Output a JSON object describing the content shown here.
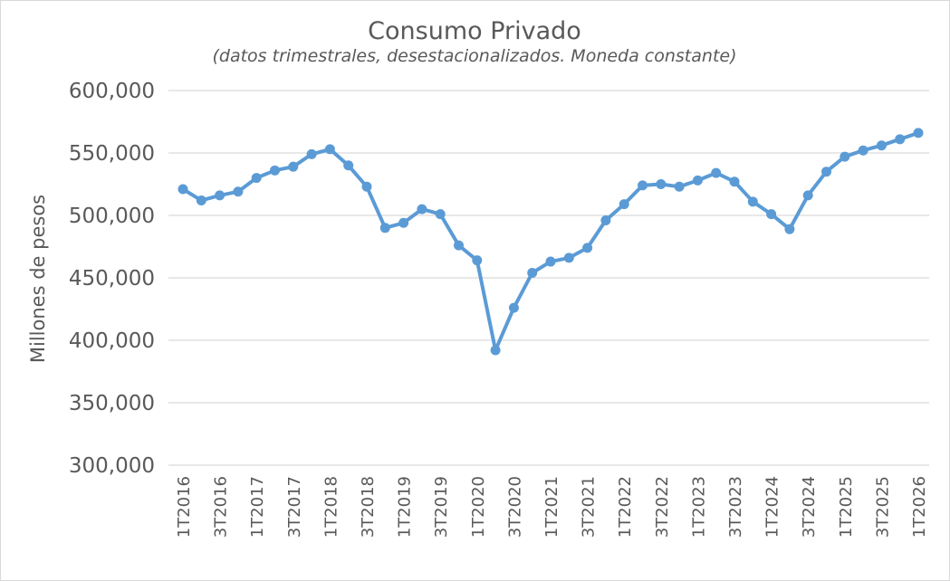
{
  "chart_data": {
    "type": "line",
    "title": "Consumo Privado",
    "subtitle": "(datos trimestrales, desestacionalizados. Moneda constante)",
    "xlabel": "",
    "ylabel": "Millones de pesos",
    "ylim": [
      300000,
      600000
    ],
    "yticks": [
      300000,
      350000,
      400000,
      450000,
      500000,
      550000,
      600000
    ],
    "ytick_labels": [
      "300,000",
      "350,000",
      "400,000",
      "450,000",
      "500,000",
      "550,000",
      "600,000"
    ],
    "grid": true,
    "legend": "none",
    "series_color": "#5b9bd5",
    "x": [
      "1T2016",
      "2T2016",
      "3T2016",
      "4T2016",
      "1T2017",
      "2T2017",
      "3T2017",
      "4T2017",
      "1T2018",
      "2T2018",
      "3T2018",
      "4T2018",
      "1T2019",
      "2T2019",
      "3T2019",
      "4T2019",
      "1T2020",
      "2T2020",
      "3T2020",
      "4T2020",
      "1T2021",
      "2T2021",
      "3T2021",
      "4T2021",
      "1T2022",
      "2T2022",
      "3T2022",
      "4T2022",
      "1T2023",
      "2T2023",
      "3T2023",
      "4T2023",
      "1T2024",
      "2T2024",
      "3T2024",
      "4T2024",
      "1T2025",
      "2T2025",
      "3T2025",
      "4T2025",
      "1T2026"
    ],
    "x_tick_labels": [
      "1T2016",
      "3T2016",
      "1T2017",
      "3T2017",
      "1T2018",
      "3T2018",
      "1T2019",
      "3T2019",
      "1T2020",
      "3T2020",
      "1T2021",
      "3T2021",
      "1T2022",
      "3T2022",
      "1T2023",
      "3T2023",
      "1T2024",
      "3T2024",
      "1T2025",
      "3T2025",
      "1T2026"
    ],
    "series": [
      {
        "values": [
          521000,
          512000,
          516000,
          519000,
          530000,
          536000,
          539000,
          549000,
          553000,
          540000,
          523000,
          490000,
          494000,
          505000,
          501000,
          476000,
          464000,
          392000,
          426000,
          454000,
          463000,
          466000,
          474000,
          496000,
          509000,
          524000,
          525000,
          523000,
          528000,
          534000,
          527000,
          511000,
          501000,
          489000,
          516000,
          535000,
          547000,
          552000,
          556000,
          561000,
          566000
        ]
      }
    ]
  }
}
